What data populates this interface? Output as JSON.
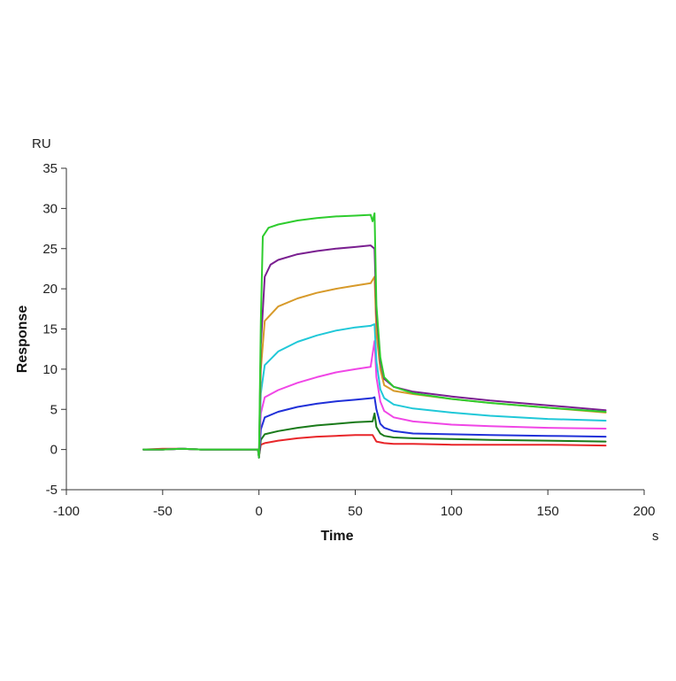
{
  "chart_data": {
    "type": "line",
    "xlabel": "Time",
    "ylabel": "Response",
    "x_unit": "s",
    "y_unit": "RU",
    "xlim": [
      -100,
      200
    ],
    "ylim": [
      -5,
      35
    ],
    "xticks": [
      -100,
      -50,
      0,
      50,
      100,
      150,
      200
    ],
    "yticks": [
      -5,
      0,
      5,
      10,
      15,
      20,
      25,
      30,
      35
    ],
    "xtick_labels": [
      "-100",
      "-50",
      "0",
      "50",
      "100",
      "150",
      "200"
    ],
    "ytick_labels": [
      "-5",
      "0",
      "5",
      "10",
      "15",
      "20",
      "25",
      "30",
      "35"
    ],
    "grid": false,
    "legend": "none",
    "series": [
      {
        "color": "#e8262a",
        "points": [
          [
            -60,
            0
          ],
          [
            -50,
            0.1
          ],
          [
            -40,
            0.1
          ],
          [
            -30,
            0
          ],
          [
            -20,
            0
          ],
          [
            -10,
            0
          ],
          [
            -0.5,
            0
          ],
          [
            0,
            -0.8
          ],
          [
            1,
            0.6
          ],
          [
            3,
            0.8
          ],
          [
            10,
            1.1
          ],
          [
            20,
            1.4
          ],
          [
            30,
            1.6
          ],
          [
            40,
            1.7
          ],
          [
            50,
            1.8
          ],
          [
            59,
            1.8
          ],
          [
            61,
            1.0
          ],
          [
            63,
            0.9
          ],
          [
            65,
            0.8
          ],
          [
            70,
            0.7
          ],
          [
            80,
            0.7
          ],
          [
            100,
            0.6
          ],
          [
            120,
            0.6
          ],
          [
            150,
            0.6
          ],
          [
            180,
            0.5
          ]
        ]
      },
      {
        "color": "#1a7a1a",
        "points": [
          [
            -60,
            0
          ],
          [
            -50,
            0
          ],
          [
            -40,
            0.1
          ],
          [
            -30,
            0
          ],
          [
            -20,
            0
          ],
          [
            -10,
            0
          ],
          [
            -0.5,
            0
          ],
          [
            0,
            -1
          ],
          [
            1,
            1.2
          ],
          [
            3,
            1.9
          ],
          [
            10,
            2.3
          ],
          [
            20,
            2.7
          ],
          [
            30,
            3.0
          ],
          [
            40,
            3.2
          ],
          [
            50,
            3.4
          ],
          [
            59,
            3.5
          ],
          [
            60,
            4.5
          ],
          [
            61,
            2.8
          ],
          [
            63,
            2.0
          ],
          [
            65,
            1.7
          ],
          [
            70,
            1.5
          ],
          [
            80,
            1.4
          ],
          [
            100,
            1.3
          ],
          [
            120,
            1.2
          ],
          [
            150,
            1.1
          ],
          [
            180,
            1.0
          ]
        ]
      },
      {
        "color": "#2030d8",
        "points": [
          [
            -60,
            0
          ],
          [
            -50,
            0
          ],
          [
            -40,
            0.1
          ],
          [
            -30,
            0
          ],
          [
            -20,
            0
          ],
          [
            -10,
            0
          ],
          [
            -0.5,
            0
          ],
          [
            0,
            -1
          ],
          [
            1,
            2.5
          ],
          [
            3,
            4.0
          ],
          [
            10,
            4.7
          ],
          [
            20,
            5.3
          ],
          [
            30,
            5.7
          ],
          [
            40,
            6.0
          ],
          [
            50,
            6.2
          ],
          [
            59,
            6.4
          ],
          [
            60,
            6.5
          ],
          [
            61,
            5.0
          ],
          [
            63,
            3.2
          ],
          [
            65,
            2.7
          ],
          [
            70,
            2.3
          ],
          [
            80,
            2.0
          ],
          [
            100,
            1.9
          ],
          [
            120,
            1.8
          ],
          [
            150,
            1.7
          ],
          [
            180,
            1.6
          ]
        ]
      },
      {
        "color": "#f046e6",
        "points": [
          [
            -60,
            0
          ],
          [
            -50,
            0
          ],
          [
            -40,
            0.1
          ],
          [
            -30,
            0
          ],
          [
            -20,
            0
          ],
          [
            -10,
            0
          ],
          [
            -0.5,
            0
          ],
          [
            0,
            -1
          ],
          [
            1,
            4.5
          ],
          [
            3,
            6.5
          ],
          [
            10,
            7.4
          ],
          [
            20,
            8.3
          ],
          [
            30,
            9.0
          ],
          [
            40,
            9.6
          ],
          [
            50,
            10.0
          ],
          [
            58,
            10.3
          ],
          [
            60,
            13.5
          ],
          [
            61,
            9.0
          ],
          [
            63,
            6.0
          ],
          [
            65,
            4.8
          ],
          [
            70,
            4.0
          ],
          [
            80,
            3.5
          ],
          [
            100,
            3.1
          ],
          [
            120,
            2.9
          ],
          [
            150,
            2.7
          ],
          [
            180,
            2.6
          ]
        ]
      },
      {
        "color": "#20c8d8",
        "points": [
          [
            -60,
            0
          ],
          [
            -50,
            0
          ],
          [
            -40,
            0.1
          ],
          [
            -30,
            0
          ],
          [
            -20,
            0
          ],
          [
            -10,
            0
          ],
          [
            -0.5,
            0
          ],
          [
            0,
            -1
          ],
          [
            1,
            7.0
          ],
          [
            3,
            10.5
          ],
          [
            10,
            12.2
          ],
          [
            20,
            13.4
          ],
          [
            30,
            14.2
          ],
          [
            40,
            14.8
          ],
          [
            50,
            15.2
          ],
          [
            58,
            15.4
          ],
          [
            60,
            15.6
          ],
          [
            61,
            11.0
          ],
          [
            63,
            7.5
          ],
          [
            65,
            6.4
          ],
          [
            70,
            5.6
          ],
          [
            80,
            5.1
          ],
          [
            100,
            4.6
          ],
          [
            120,
            4.2
          ],
          [
            150,
            3.8
          ],
          [
            180,
            3.6
          ]
        ]
      },
      {
        "color": "#d79a2a",
        "points": [
          [
            -60,
            0
          ],
          [
            -50,
            0
          ],
          [
            -40,
            0.1
          ],
          [
            -30,
            0
          ],
          [
            -20,
            0
          ],
          [
            -10,
            0
          ],
          [
            -0.5,
            0
          ],
          [
            0,
            -1
          ],
          [
            1,
            10.0
          ],
          [
            3,
            16.0
          ],
          [
            10,
            17.8
          ],
          [
            20,
            18.8
          ],
          [
            30,
            19.5
          ],
          [
            40,
            20.0
          ],
          [
            50,
            20.4
          ],
          [
            58,
            20.7
          ],
          [
            60,
            21.5
          ],
          [
            61,
            14.5
          ],
          [
            63,
            10.0
          ],
          [
            65,
            8.0
          ],
          [
            70,
            7.3
          ],
          [
            80,
            6.9
          ],
          [
            100,
            6.3
          ],
          [
            120,
            5.8
          ],
          [
            150,
            5.2
          ],
          [
            180,
            4.6
          ]
        ]
      },
      {
        "color": "#7a1f90",
        "points": [
          [
            -60,
            0
          ],
          [
            -50,
            0
          ],
          [
            -40,
            0.1
          ],
          [
            -30,
            0
          ],
          [
            -20,
            0
          ],
          [
            -10,
            0
          ],
          [
            -0.5,
            0
          ],
          [
            0,
            -1
          ],
          [
            1,
            13.0
          ],
          [
            3,
            21.5
          ],
          [
            6,
            23.0
          ],
          [
            10,
            23.6
          ],
          [
            20,
            24.3
          ],
          [
            30,
            24.7
          ],
          [
            40,
            25.0
          ],
          [
            50,
            25.2
          ],
          [
            58,
            25.4
          ],
          [
            60,
            25.0
          ],
          [
            61,
            17.0
          ],
          [
            63,
            11.0
          ],
          [
            65,
            8.8
          ],
          [
            70,
            7.8
          ],
          [
            80,
            7.2
          ],
          [
            100,
            6.6
          ],
          [
            120,
            6.1
          ],
          [
            150,
            5.5
          ],
          [
            180,
            4.9
          ]
        ]
      },
      {
        "color": "#2ecc2e",
        "points": [
          [
            -60,
            0
          ],
          [
            -50,
            0
          ],
          [
            -40,
            0.1
          ],
          [
            -30,
            0
          ],
          [
            -20,
            0
          ],
          [
            -10,
            0
          ],
          [
            -0.5,
            0
          ],
          [
            0,
            -1
          ],
          [
            1,
            16.0
          ],
          [
            2,
            26.5
          ],
          [
            5,
            27.6
          ],
          [
            10,
            28.0
          ],
          [
            20,
            28.5
          ],
          [
            30,
            28.8
          ],
          [
            40,
            29.0
          ],
          [
            50,
            29.1
          ],
          [
            58,
            29.2
          ],
          [
            59,
            28.4
          ],
          [
            60,
            29.4
          ],
          [
            61,
            18.0
          ],
          [
            63,
            11.5
          ],
          [
            65,
            9.0
          ],
          [
            70,
            7.8
          ],
          [
            80,
            7.0
          ],
          [
            100,
            6.3
          ],
          [
            120,
            5.8
          ],
          [
            150,
            5.2
          ],
          [
            180,
            4.7
          ]
        ]
      }
    ]
  }
}
